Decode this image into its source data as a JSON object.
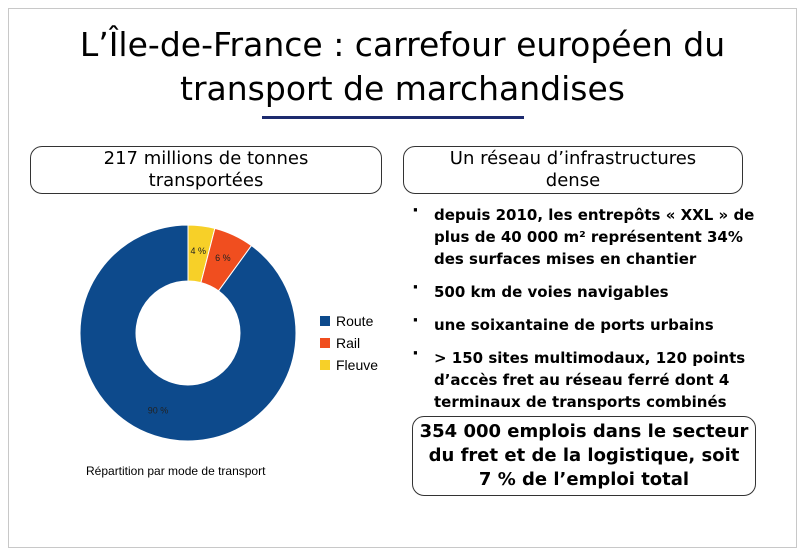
{
  "title": {
    "line1": "L’Île-de-France : carrefour européen du",
    "line2": "transport de marchandises"
  },
  "left_box": {
    "line1": "217 millions de tonnes",
    "line2": "transportées"
  },
  "right_box": {
    "line1": "Un réseau d’infrastructures",
    "line2": "dense"
  },
  "bullets": [
    "depuis 2010, les entrepôts « XXL » de plus de 40 000 m² représentent 34% des surfaces mises en chantier",
    "500 km de voies navigables",
    "une soixantaine de ports urbains",
    "> 150 sites multimodaux, 120 points d’accès fret au réseau ferré dont 4 terminaux de transports combinés"
  ],
  "bottom_box": {
    "line1": "354 000 emplois dans le secteur",
    "line2": "du fret et de la logistique, soit",
    "line3": "7 % de l’emploi total"
  },
  "colors": {
    "route": "#0d4a8c",
    "rail": "#f04e1f",
    "fleuve": "#f7d028",
    "title_rule": "#1c2a6e"
  },
  "chart_data": {
    "type": "pie",
    "style": "donut",
    "categories": [
      "Route",
      "Rail",
      "Fleuve"
    ],
    "values": [
      90,
      6,
      4
    ],
    "data_labels": [
      "90 %",
      "6 %",
      "4 %"
    ],
    "caption": "Répartition par mode de transport",
    "legend_position": "right"
  }
}
